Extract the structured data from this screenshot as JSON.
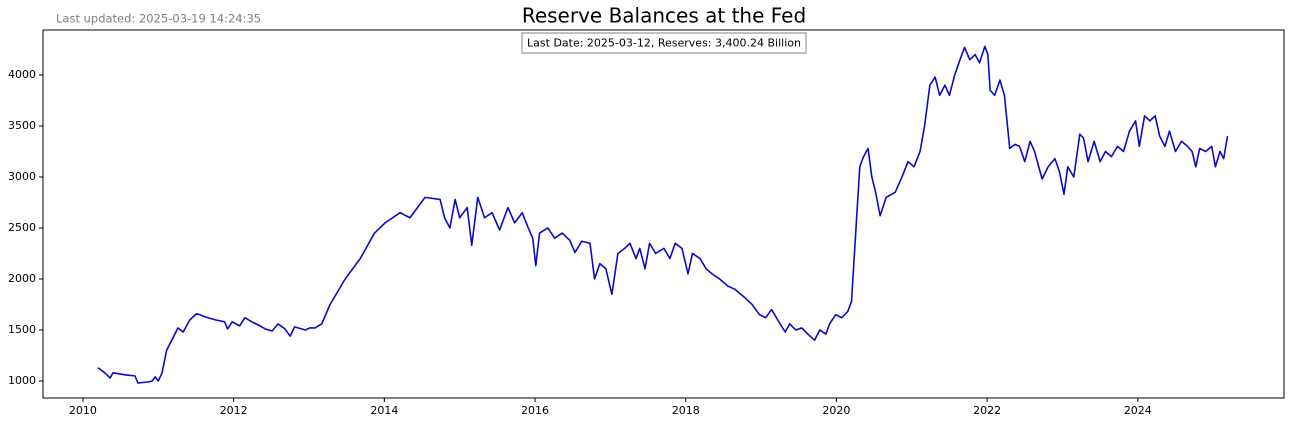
{
  "chart_data": {
    "type": "line",
    "title": "Reserve Balances at the Fed",
    "subtitle": "Last updated: 2025-03-19 14:24:35",
    "annotation": "Last Date: 2025-03-12, Reserves: 3,400.24 Billion",
    "xlim": [
      2009.47,
      2025.94
    ],
    "ylim": [
      833,
      4441
    ],
    "xticks": [
      2010,
      2012,
      2014,
      2016,
      2018,
      2020,
      2022,
      2024
    ],
    "yticks": [
      1000,
      1500,
      2000,
      2500,
      3000,
      3500,
      4000
    ],
    "grid": false,
    "series": [
      {
        "name": "Reserves",
        "color": "#0b0bc4",
        "x": [
          2010.2,
          2010.29,
          2010.36,
          2010.4,
          2010.56,
          2010.69,
          2010.73,
          2010.86,
          2010.92,
          2010.96,
          2011.0,
          2011.05,
          2011.11,
          2011.18,
          2011.26,
          2011.33,
          2011.42,
          2011.51,
          2011.62,
          2011.75,
          2011.88,
          2011.92,
          2011.98,
          2012.08,
          2012.15,
          2012.24,
          2012.35,
          2012.42,
          2012.51,
          2012.59,
          2012.68,
          2012.75,
          2012.81,
          2012.95,
          2013.01,
          2013.08,
          2013.17,
          2013.28,
          2013.48,
          2013.68,
          2013.87,
          2014.01,
          2014.21,
          2014.34,
          2014.54,
          2014.74,
          2014.8,
          2014.87,
          2014.94,
          2015.0,
          2015.1,
          2015.16,
          2015.24,
          2015.33,
          2015.43,
          2015.53,
          2015.64,
          2015.73,
          2015.83,
          2015.91,
          2015.97,
          2016.01,
          2016.06,
          2016.17,
          2016.26,
          2016.36,
          2016.46,
          2016.53,
          2016.62,
          2016.73,
          2016.79,
          2016.86,
          2016.94,
          2017.02,
          2017.1,
          2017.19,
          2017.26,
          2017.34,
          2017.39,
          2017.46,
          2017.52,
          2017.6,
          2017.71,
          2017.79,
          2017.86,
          2017.95,
          2018.03,
          2018.09,
          2018.19,
          2018.27,
          2018.35,
          2018.45,
          2018.56,
          2018.65,
          2018.78,
          2018.88,
          2018.98,
          2019.06,
          2019.14,
          2019.22,
          2019.32,
          2019.38,
          2019.46,
          2019.54,
          2019.62,
          2019.71,
          2019.78,
          2019.86,
          2019.91,
          2019.99,
          2020.07,
          2020.15,
          2020.2,
          2020.26,
          2020.31,
          2020.36,
          2020.42,
          2020.47,
          2020.52,
          2020.58,
          2020.66,
          2020.78,
          2020.87,
          2020.95,
          2021.03,
          2021.11,
          2021.17,
          2021.24,
          2021.31,
          2021.37,
          2021.44,
          2021.5,
          2021.57,
          2021.64,
          2021.7,
          2021.77,
          2021.84,
          2021.9,
          2021.97,
          2022.01,
          2022.04,
          2022.1,
          2022.17,
          2022.23,
          2022.3,
          2022.37,
          2022.43,
          2022.5,
          2022.57,
          2022.63,
          2022.73,
          2022.81,
          2022.9,
          2022.96,
          2023.02,
          2023.07,
          2023.15,
          2023.23,
          2023.28,
          2023.34,
          2023.42,
          2023.5,
          2023.57,
          2023.65,
          2023.73,
          2023.81,
          2023.89,
          2023.97,
          2024.02,
          2024.09,
          2024.16,
          2024.23,
          2024.29,
          2024.36,
          2024.42,
          2024.5,
          2024.58,
          2024.66,
          2024.72,
          2024.77,
          2024.82,
          2024.9,
          2024.98,
          2025.03,
          2025.09,
          2025.14,
          2025.19
        ],
        "values": [
          1130,
          1080,
          1030,
          1080,
          1060,
          1050,
          980,
          990,
          1000,
          1040,
          1000,
          1080,
          1300,
          1400,
          1520,
          1480,
          1600,
          1660,
          1630,
          1600,
          1580,
          1510,
          1580,
          1540,
          1620,
          1580,
          1540,
          1510,
          1490,
          1560,
          1510,
          1440,
          1530,
          1500,
          1520,
          1520,
          1560,
          1750,
          2000,
          2200,
          2450,
          2550,
          2650,
          2600,
          2800,
          2780,
          2600,
          2500,
          2780,
          2600,
          2700,
          2330,
          2800,
          2600,
          2650,
          2480,
          2700,
          2550,
          2650,
          2500,
          2400,
          2130,
          2450,
          2500,
          2400,
          2450,
          2380,
          2260,
          2370,
          2350,
          2000,
          2150,
          2100,
          1850,
          2250,
          2300,
          2350,
          2200,
          2300,
          2100,
          2350,
          2250,
          2300,
          2200,
          2350,
          2300,
          2050,
          2250,
          2200,
          2100,
          2050,
          2000,
          1930,
          1900,
          1820,
          1750,
          1650,
          1620,
          1700,
          1600,
          1480,
          1560,
          1500,
          1520,
          1460,
          1400,
          1500,
          1460,
          1560,
          1650,
          1620,
          1680,
          1780,
          2500,
          3100,
          3200,
          3280,
          3000,
          2850,
          2620,
          2800,
          2850,
          3000,
          3150,
          3100,
          3250,
          3500,
          3900,
          3980,
          3800,
          3900,
          3800,
          4000,
          4150,
          4270,
          4150,
          4200,
          4120,
          4280,
          4200,
          3850,
          3800,
          3950,
          3800,
          3280,
          3320,
          3300,
          3150,
          3350,
          3250,
          2980,
          3100,
          3180,
          3050,
          2830,
          3100,
          3000,
          3420,
          3380,
          3150,
          3350,
          3150,
          3250,
          3200,
          3300,
          3250,
          3450,
          3550,
          3300,
          3600,
          3550,
          3600,
          3400,
          3300,
          3450,
          3250,
          3350,
          3300,
          3250,
          3100,
          3280,
          3250,
          3300,
          3100,
          3250,
          3180,
          3400.24
        ]
      }
    ]
  }
}
